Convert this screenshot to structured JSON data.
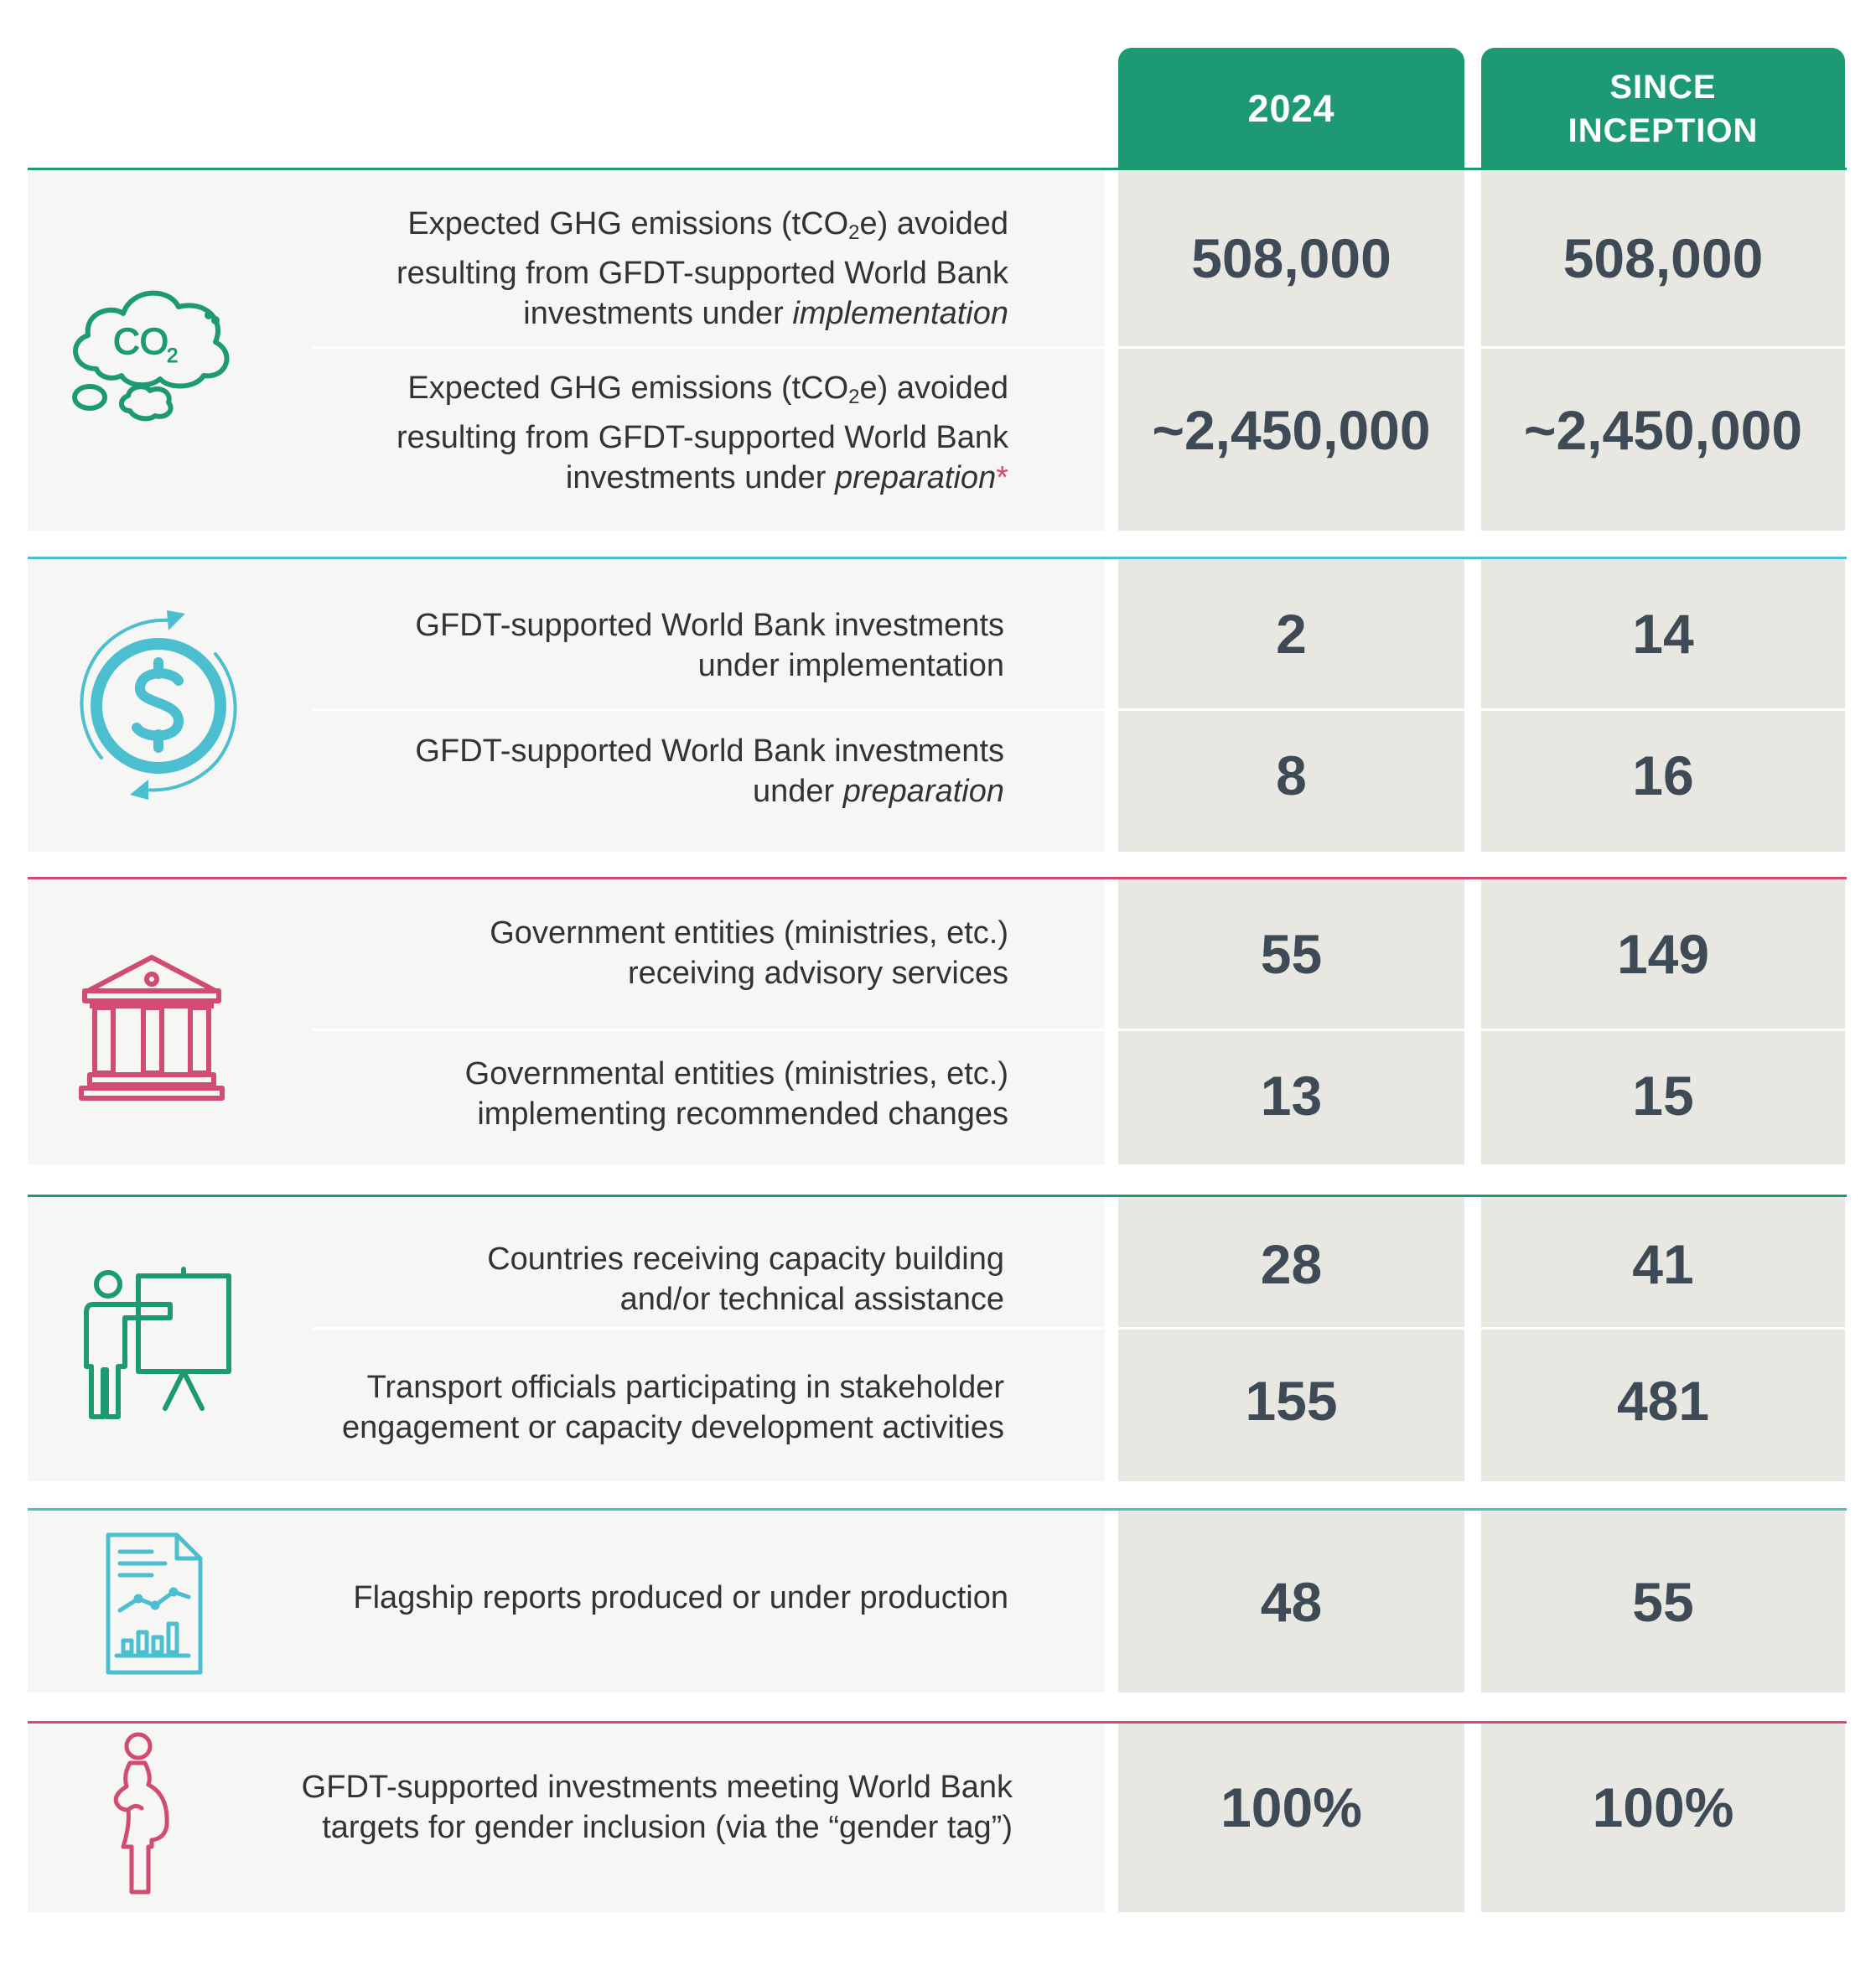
{
  "header": {
    "col_2024": "2024",
    "col_since_line1": "SINCE",
    "col_since_line2": "INCEPTION"
  },
  "colors": {
    "green": "#1d9a73",
    "teal": "#4bbfd0",
    "pink": "#d24b72"
  },
  "sections": [
    {
      "icon": "co2-cloud-icon",
      "rows": [
        {
          "label_a": "Expected GHG emissions (tCO",
          "label_sub": "2",
          "label_b": "e) avoided",
          "label_line2": "resulting from GFDT-supported World Bank",
          "label_line3_plain": "investments under ",
          "label_line3_italic": "implementation",
          "value_2024": "508,000",
          "value_since": "508,000"
        },
        {
          "label_a": "Expected GHG emissions (tCO",
          "label_sub": "2",
          "label_b": "e) avoided",
          "label_line2": "resulting from GFDT-supported World Bank",
          "label_line3_plain": "investments under ",
          "label_line3_italic": "preparation",
          "label_asterisk": "*",
          "value_2024": "~2,450,000",
          "value_since": "~2,450,000"
        }
      ]
    },
    {
      "icon": "dollar-cycle-icon",
      "rows": [
        {
          "label_line1": "GFDT-supported World Bank investments",
          "label_line2": "under implementation",
          "value_2024": "2",
          "value_since": "14"
        },
        {
          "label_line1": "GFDT-supported World Bank investments",
          "label_line2_plain": "under ",
          "label_line2_italic": "preparation",
          "value_2024": "8",
          "value_since": "16"
        }
      ]
    },
    {
      "icon": "government-building-icon",
      "rows": [
        {
          "label_line1": "Government entities (ministries, etc.)",
          "label_line2": "receiving advisory services",
          "value_2024": "55",
          "value_since": "149"
        },
        {
          "label_line1": "Governmental entities (ministries, etc.)",
          "label_line2": "implementing recommended changes",
          "value_2024": "13",
          "value_since": "15"
        }
      ]
    },
    {
      "icon": "presenter-board-icon",
      "rows": [
        {
          "label_line1": "Countries receiving capacity building",
          "label_line2": "and/or technical assistance",
          "value_2024": "28",
          "value_since": "41"
        },
        {
          "label_line1": "Transport officials participating in stakeholder",
          "label_line2": "engagement or capacity development activities",
          "value_2024": "155",
          "value_since": "481"
        }
      ]
    },
    {
      "icon": "report-document-icon",
      "rows": [
        {
          "label_line1": "Flagship reports produced or under production",
          "value_2024": "48",
          "value_since": "55"
        }
      ]
    },
    {
      "icon": "pregnant-woman-icon",
      "rows": [
        {
          "label_line1": "GFDT-supported investments meeting World Bank",
          "label_line2": "targets for gender inclusion (via the “gender tag”)",
          "value_2024": "100%",
          "value_since": "100%"
        }
      ]
    }
  ]
}
